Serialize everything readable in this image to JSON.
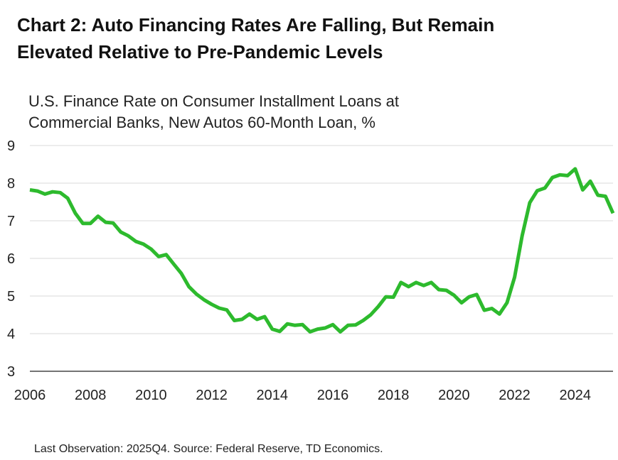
{
  "title_line1": "Chart 2: Auto Financing Rates Are Falling, But Remain",
  "title_line2": "Elevated Relative to Pre-Pandemic Levels",
  "footnote": "Last Observation: 2025Q4. Source: Federal Reserve, TD Economics.",
  "colors": {
    "line": "#2dba2d",
    "grid": "#d9d9d9",
    "axis": "#222222"
  },
  "chart_data": {
    "type": "line",
    "title": "Chart 2: Auto Financing Rates Are Falling, But Remain Elevated Relative to Pre-Pandemic Levels",
    "ylabel_line1": "U.S. Finance Rate on Consumer Installment Loans at",
    "ylabel_line2": "Commercial Banks, New Autos 60-Month Loan, %",
    "xlim": [
      2006,
      2025.25
    ],
    "ylim": [
      3,
      9
    ],
    "yticks": [
      3,
      4,
      5,
      6,
      7,
      8,
      9
    ],
    "xticks": [
      2006,
      2008,
      2010,
      2012,
      2014,
      2016,
      2018,
      2020,
      2022,
      2024
    ],
    "grid": true,
    "series": [
      {
        "x": [
          2006.0,
          2006.25,
          2006.5,
          2006.75,
          2007.0,
          2007.25,
          2007.5,
          2007.75,
          2008.0,
          2008.25,
          2008.5,
          2008.75,
          2009.0,
          2009.25,
          2009.5,
          2009.75,
          2010.0,
          2010.25,
          2010.5,
          2010.75,
          2011.0,
          2011.25,
          2011.5,
          2011.75,
          2012.0,
          2012.25,
          2012.5,
          2012.75,
          2013.0,
          2013.25,
          2013.5,
          2013.75,
          2014.0,
          2014.25,
          2014.5,
          2014.75,
          2015.0,
          2015.25,
          2015.5,
          2015.75,
          2016.0,
          2016.25,
          2016.5,
          2016.75,
          2017.0,
          2017.25,
          2017.5,
          2017.75,
          2018.0,
          2018.25,
          2018.5,
          2018.75,
          2019.0,
          2019.25,
          2019.5,
          2019.75,
          2020.0,
          2020.25,
          2020.5,
          2020.75,
          2021.0,
          2021.25,
          2021.5,
          2021.75,
          2022.0,
          2022.25,
          2022.5,
          2022.75,
          2023.0,
          2023.25,
          2023.5,
          2023.75,
          2024.0,
          2024.25,
          2024.5,
          2024.75,
          2025.0,
          2025.25
        ],
        "values": [
          7.82,
          7.79,
          7.71,
          7.77,
          7.75,
          7.6,
          7.2,
          6.93,
          6.93,
          7.12,
          6.96,
          6.94,
          6.7,
          6.6,
          6.45,
          6.38,
          6.25,
          6.05,
          6.1,
          5.85,
          5.6,
          5.25,
          5.05,
          4.9,
          4.78,
          4.68,
          4.63,
          4.35,
          4.38,
          4.52,
          4.38,
          4.45,
          4.12,
          4.06,
          4.26,
          4.22,
          4.24,
          4.05,
          4.12,
          4.15,
          4.24,
          4.05,
          4.22,
          4.23,
          4.35,
          4.5,
          4.72,
          4.98,
          4.97,
          5.36,
          5.25,
          5.36,
          5.28,
          5.36,
          5.17,
          5.15,
          5.02,
          4.82,
          4.98,
          5.04,
          4.62,
          4.67,
          4.52,
          4.82,
          5.5,
          6.6,
          7.48,
          7.8,
          7.87,
          8.15,
          8.22,
          8.2,
          8.38,
          7.82,
          8.05,
          7.68,
          7.65,
          7.2
        ]
      }
    ]
  }
}
